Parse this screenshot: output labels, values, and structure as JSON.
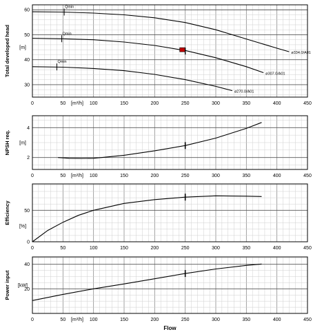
{
  "chart_data": [
    {
      "type": "line",
      "ylabel": "Total developed head",
      "unit": "[m]",
      "xunit": "[m³/h]",
      "xlim": [
        0,
        450
      ],
      "ylim": [
        25,
        62
      ],
      "xticks": [
        0,
        50,
        100,
        150,
        200,
        250,
        300,
        350,
        400,
        450
      ],
      "yticks": [
        30,
        40,
        50,
        60
      ],
      "series": [
        {
          "name": "ø334.0/A01",
          "x": [
            0,
            50,
            100,
            150,
            200,
            250,
            300,
            350,
            400,
            420
          ],
          "y": [
            59.2,
            59.1,
            58.7,
            58.0,
            56.8,
            54.9,
            52.0,
            48.3,
            44.6,
            43.2
          ]
        },
        {
          "name": "ø307.0/A01",
          "x": [
            0,
            50,
            100,
            150,
            200,
            250,
            300,
            350,
            378
          ],
          "y": [
            48.6,
            48.4,
            48.0,
            47.1,
            45.7,
            43.7,
            40.8,
            37.2,
            34.8
          ]
        },
        {
          "name": "ø270.0/A01",
          "x": [
            0,
            50,
            100,
            150,
            200,
            250,
            300,
            327
          ],
          "y": [
            37.2,
            37.0,
            36.5,
            35.6,
            34.1,
            32.0,
            29.3,
            27.6
          ]
        }
      ],
      "qmin": [
        {
          "label": "Qmin",
          "x": 52,
          "y": 59.1
        },
        {
          "label": "Qmin",
          "x": 48,
          "y": 48.4
        },
        {
          "label": "Qmin",
          "x": 40,
          "y": 37.1
        }
      ],
      "duty_point": {
        "x": 250,
        "y": 44
      }
    },
    {
      "type": "line",
      "ylabel": "NPSH req.",
      "unit": "[m]",
      "xunit": "[m³/h]",
      "xlim": [
        0,
        450
      ],
      "ylim": [
        1.2,
        4.8
      ],
      "xticks": [
        0,
        50,
        100,
        150,
        200,
        250,
        300,
        350,
        400,
        450
      ],
      "yticks": [
        2,
        4
      ],
      "series": [
        {
          "name": "",
          "x": [
            42,
            60,
            80,
            100,
            150,
            200,
            250,
            300,
            350,
            375
          ],
          "y": [
            2.0,
            1.95,
            1.94,
            1.95,
            2.15,
            2.45,
            2.8,
            3.3,
            3.95,
            4.35
          ]
        }
      ],
      "duty_point": {
        "x": 250,
        "y": 2.8
      }
    },
    {
      "type": "line",
      "ylabel": "Efficiency",
      "unit": "[%]",
      "xunit": "",
      "xlim": [
        0,
        450
      ],
      "ylim": [
        0,
        92
      ],
      "xticks": [
        0,
        50,
        100,
        150,
        200,
        250,
        300,
        350,
        400,
        450
      ],
      "yticks": [
        0,
        50
      ],
      "series": [
        {
          "name": "",
          "x": [
            0,
            25,
            50,
            75,
            100,
            150,
            200,
            250,
            300,
            350,
            375
          ],
          "y": [
            0,
            18,
            31,
            42,
            50,
            61,
            67,
            71,
            73,
            72.5,
            72
          ]
        }
      ],
      "duty_point": {
        "x": 250,
        "y": 71
      }
    },
    {
      "type": "line",
      "ylabel": "Power input",
      "unit": "[kW]",
      "xunit": "[m³/h]",
      "xlabel": "Flow",
      "xlim": [
        0,
        450
      ],
      "ylim": [
        0,
        46
      ],
      "xticks": [
        0,
        50,
        100,
        150,
        200,
        250,
        300,
        350,
        400,
        450
      ],
      "yticks": [
        20,
        40
      ],
      "series": [
        {
          "name": "",
          "x": [
            0,
            50,
            100,
            150,
            200,
            250,
            300,
            350,
            375
          ],
          "y": [
            10.5,
            15.5,
            20.0,
            24.0,
            28.2,
            32.5,
            36.2,
            39.1,
            40.2
          ]
        }
      ],
      "duty_point": {
        "x": 250,
        "y": 32.5
      }
    }
  ]
}
